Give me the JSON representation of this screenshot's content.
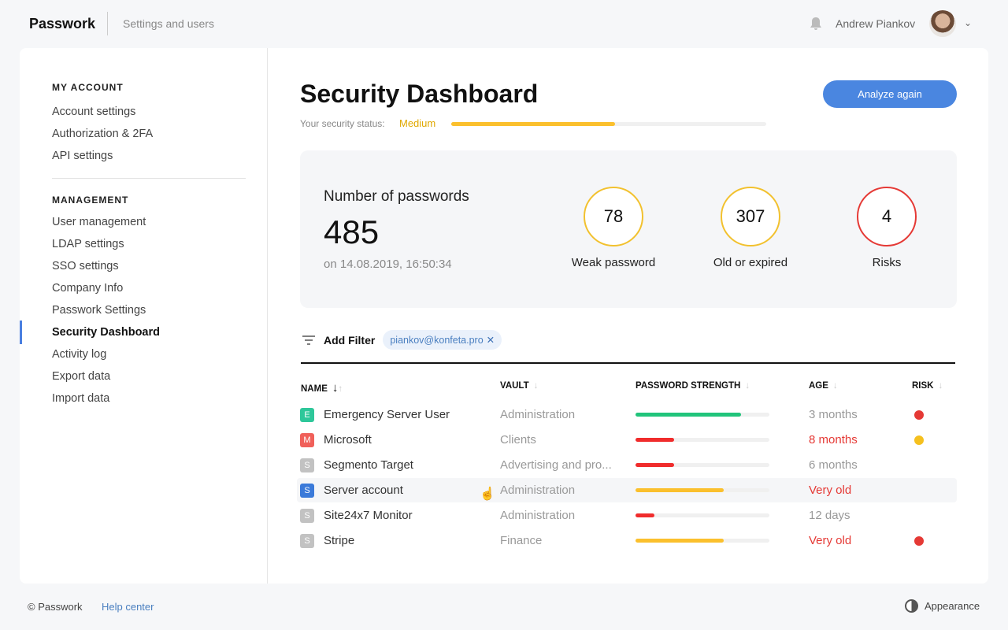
{
  "header": {
    "logo": "Passwork",
    "breadcrumb": "Settings and users",
    "user_name": "Andrew Piankov"
  },
  "sidebar": {
    "my_account_title": "MY ACCOUNT",
    "my_account": [
      "Account settings",
      "Authorization & 2FA",
      "API settings"
    ],
    "management_title": "MANAGEMENT",
    "management": [
      "User management",
      "LDAP settings",
      "SSO settings",
      "Company Info",
      "Passwork Settings",
      "Security Dashboard",
      "Activity log",
      "Export data",
      "Import data"
    ],
    "active": "Security Dashboard"
  },
  "main": {
    "title": "Security Dashboard",
    "status_label": "Your security status:",
    "status_value": "Medium",
    "status_level": 0.52,
    "analyze_label": "Analyze again",
    "summary": {
      "label": "Number of passwords",
      "count": "485",
      "date": "on 14.08.2019, 16:50:34",
      "stats": [
        {
          "value": "78",
          "label": "Weak password",
          "color": "#f2c12e"
        },
        {
          "value": "307",
          "label": "Old or expired",
          "color": "#f2c12e"
        },
        {
          "value": "4",
          "label": "Risks",
          "color": "#e53935"
        }
      ]
    },
    "filter": {
      "label": "Add Filter",
      "chip": "piankov@konfeta.pro"
    },
    "columns": [
      "NAME",
      "VAULT",
      "PASSWORD STRENGTH",
      "AGE",
      "RISK"
    ],
    "rows": [
      {
        "letter": "E",
        "badge": "#2ec79a",
        "name": "Emergency Server User",
        "vault": "Administration",
        "strength": 0.79,
        "strength_color": "#21c47b",
        "age": "3 months",
        "age_alert": false,
        "risk": "#e53935"
      },
      {
        "letter": "M",
        "badge": "#f0605a",
        "name": "Microsoft",
        "vault": "Clients",
        "strength": 0.29,
        "strength_color": "#f02c2c",
        "age": "8 months",
        "age_alert": true,
        "risk": "#f5c01e"
      },
      {
        "letter": "S",
        "badge": "#c2c2c2",
        "name": "Segmento Target",
        "vault": "Advertising and pro...",
        "strength": 0.29,
        "strength_color": "#f02c2c",
        "age": "6 months",
        "age_alert": false,
        "risk": null
      },
      {
        "letter": "S",
        "badge": "#3b7ad9",
        "name": "Server account",
        "vault": "Administration",
        "strength": 0.66,
        "strength_color": "#fbc02d",
        "age": "Very old",
        "age_alert": true,
        "risk": null
      },
      {
        "letter": "S",
        "badge": "#c2c2c2",
        "name": "Site24x7 Monitor",
        "vault": "Administration",
        "strength": 0.14,
        "strength_color": "#f02c2c",
        "age": "12 days",
        "age_alert": false,
        "risk": null
      },
      {
        "letter": "S",
        "badge": "#c2c2c2",
        "name": "Stripe",
        "vault": "Finance",
        "strength": 0.66,
        "strength_color": "#fbc02d",
        "age": "Very old",
        "age_alert": true,
        "risk": "#e53935"
      }
    ]
  },
  "footer": {
    "copyright": "© Passwork",
    "help": "Help center",
    "appearance": "Appearance"
  }
}
